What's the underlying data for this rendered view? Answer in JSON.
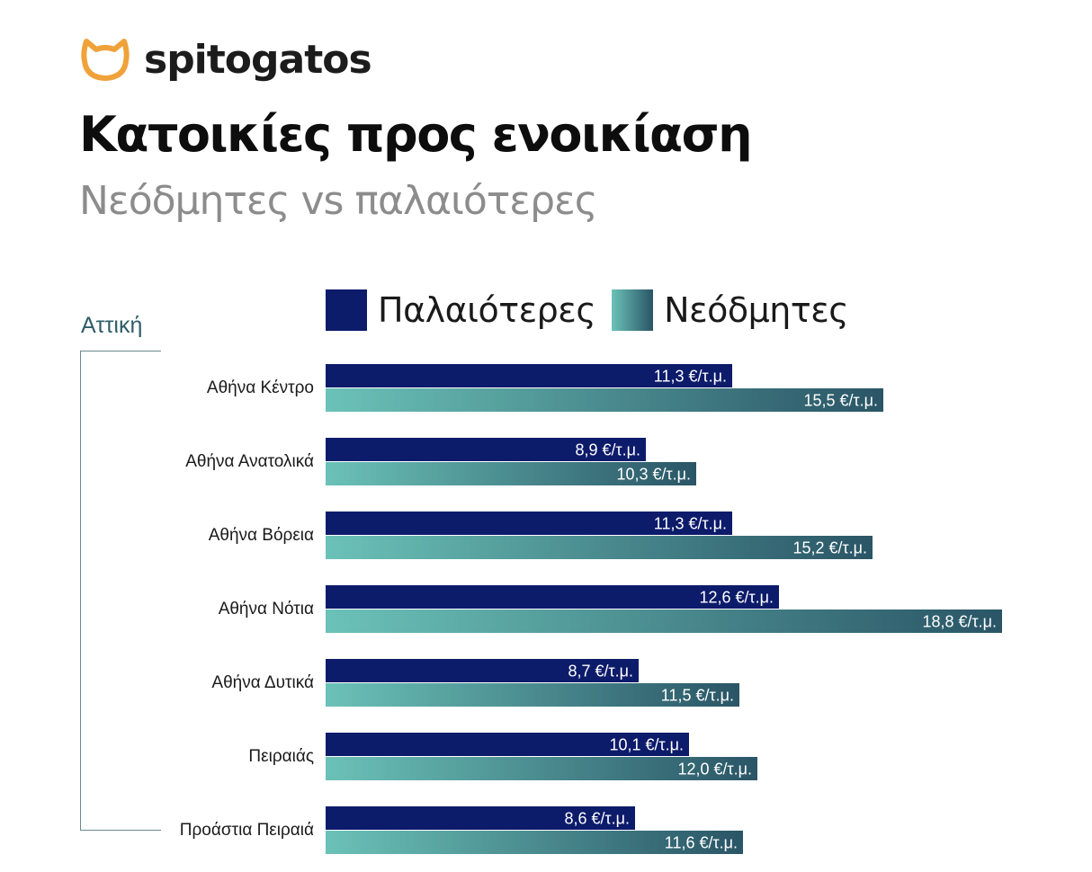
{
  "brand": {
    "name": "spitogatos",
    "icon": "cat-head-icon",
    "icon_color": "#F0A23A"
  },
  "header": {
    "title": "Κατοικίες προς ενοικίαση",
    "subtitle": "Νεόδμητες vs παλαιότερες"
  },
  "legend": {
    "items": [
      {
        "label": "Παλαιότερες",
        "color": "#0D1B6B"
      },
      {
        "label": "Νεόδμητες",
        "color_start": "#6BC2B8",
        "color_end": "#2A5566"
      }
    ]
  },
  "region": {
    "label": "Αττική"
  },
  "chart_data": {
    "type": "bar",
    "orientation": "horizontal",
    "categories": [
      "Αθήνα Κέντρο",
      "Αθήνα Ανατολικά",
      "Αθήνα Βόρεια",
      "Αθήνα Νότια",
      "Αθήνα Δυτικά",
      "Πειραιάς",
      "Προάστια Πειραιά"
    ],
    "series": [
      {
        "name": "Παλαιότερες",
        "values": [
          11.3,
          8.9,
          11.3,
          12.6,
          8.7,
          10.1,
          8.6
        ],
        "labels": [
          "11,3 €/τ.μ.",
          "8,9 €/τ.μ.",
          "11,3 €/τ.μ.",
          "12,6 €/τ.μ.",
          "8,7 €/τ.μ.",
          "10,1 €/τ.μ.",
          "8,6 €/τ.μ."
        ],
        "color": "#0D1B6B"
      },
      {
        "name": "Νεόδμητες",
        "values": [
          15.5,
          10.3,
          15.2,
          18.8,
          11.5,
          12.0,
          11.6
        ],
        "labels": [
          "15,5 €/τ.μ.",
          "10,3 €/τ.μ.",
          "15,2 €/τ.μ.",
          "18,8 €/τ.μ.",
          "11,5 €/τ.μ.",
          "12,0 €/τ.μ.",
          "11,6 €/τ.μ."
        ],
        "color_start": "#6BC2B8",
        "color_end": "#2A5566"
      }
    ],
    "unit": "€/τ.μ.",
    "xlim": [
      0,
      18.8
    ],
    "grid": false,
    "legend_position": "top"
  }
}
